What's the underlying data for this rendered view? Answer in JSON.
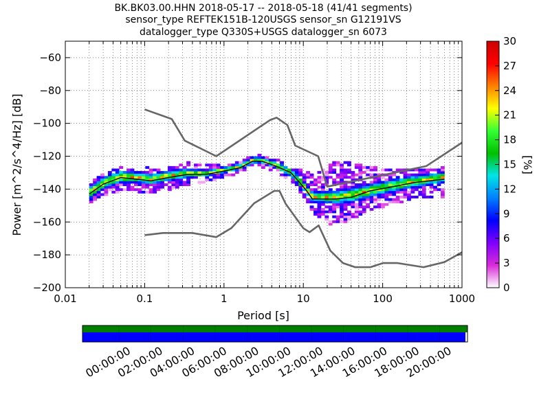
{
  "figure": {
    "title_lines": [
      "BK.BK03.00.HHN   2018-05-17 -- 2018-05-18  (41/41 segments)",
      "sensor_type REFTEK151B-120USGS sensor_sn G12191VS",
      "datalogger_type Q330S+USGS datalogger_sn 6073"
    ]
  },
  "chart_data": {
    "type": "heatmap",
    "title": "BK.BK03.00.HHN   2018-05-17 -- 2018-05-18  (41/41 segments)",
    "xlabel": "Period [s]",
    "ylabel": "Power [m^2/s^4/Hz] [dB]",
    "x_scale": "log",
    "xlim": [
      0.01,
      1000
    ],
    "ylim": [
      -200,
      -50
    ],
    "grid": true,
    "x_ticks": [
      0.01,
      0.1,
      1,
      10,
      100,
      1000
    ],
    "x_tick_labels": [
      "0.01",
      "0.1",
      "1",
      "10",
      "100",
      "1000"
    ],
    "y_ticks": [
      -200,
      -180,
      -160,
      -140,
      -120,
      -100,
      -80,
      -60
    ],
    "y_tick_labels": [
      "−200",
      "−180",
      "−160",
      "−140",
      "−120",
      "−100",
      "−80",
      "−60"
    ],
    "colorbar": {
      "label": "[%]",
      "range": [
        0,
        30
      ],
      "ticks": [
        0,
        3,
        6,
        9,
        12,
        15,
        18,
        21,
        24,
        27,
        30
      ],
      "tick_labels": [
        "0",
        "3",
        "6",
        "9",
        "12",
        "15",
        "18",
        "21",
        "24",
        "27",
        "30"
      ],
      "colors": [
        "#ffffff",
        "#d92bd9",
        "#7f00ff",
        "#0000ff",
        "#0080ff",
        "#00e5e5",
        "#00c000",
        "#33ff33",
        "#ffff00",
        "#ff8000",
        "#ff0000",
        "#cc0000"
      ]
    },
    "noise_models": [
      {
        "name": "NHNM",
        "color": "#666666",
        "x": [
          0.1,
          0.22,
          0.32,
          0.8,
          3.8,
          4.6,
          6.3,
          7.9,
          15.4,
          20,
          354,
          10000
        ],
        "y": [
          -91.5,
          -97.4,
          -110.5,
          -120,
          -98,
          -96.5,
          -101,
          -113.5,
          -120,
          -138.5,
          -126,
          -80
        ]
      },
      {
        "name": "NLNM",
        "color": "#666666",
        "x": [
          0.1,
          0.17,
          0.4,
          0.8,
          1.24,
          2.4,
          4.3,
          5,
          6,
          10,
          12,
          15.6,
          21.9,
          31.6,
          45,
          70,
          101,
          154,
          328,
          600,
          10000
        ],
        "y": [
          -168,
          -166.7,
          -166.7,
          -169.2,
          -163.7,
          -148.6,
          -141.1,
          -141.1,
          -149,
          -163.8,
          -166.2,
          -162.1,
          -177.5,
          -185,
          -187.5,
          -187.5,
          -185,
          -185,
          -187.5,
          -184.4,
          -151.5
        ]
      }
    ],
    "mode_curve": {
      "color": "#000000",
      "x": [
        0.02,
        0.03,
        0.05,
        0.08,
        0.12,
        0.2,
        0.35,
        0.6,
        1,
        1.6,
        2.3,
        3,
        4.5,
        7,
        9,
        11,
        13,
        17,
        25,
        40,
        70,
        120,
        250,
        600
      ],
      "y": [
        -143,
        -137,
        -133,
        -134,
        -135,
        -133,
        -131,
        -131,
        -129,
        -127,
        -123,
        -123,
        -126,
        -130,
        -136,
        -141,
        -146,
        -146,
        -146,
        -145,
        -141,
        -139,
        -136,
        -134
      ]
    },
    "bands": [
      {
        "name": "core",
        "x": [
          0.02,
          0.03,
          0.05,
          0.08,
          0.12,
          0.2,
          0.35,
          0.6,
          1,
          1.6,
          2.3,
          3,
          4.5,
          7,
          9,
          11,
          13,
          17,
          25,
          40,
          70,
          120,
          250,
          600
        ],
        "low": [
          -147,
          -141,
          -137,
          -137,
          -138,
          -136,
          -134,
          -133,
          -131,
          -129,
          -125,
          -125,
          -128,
          -133,
          -139,
          -144,
          -149,
          -149,
          -150,
          -149,
          -146,
          -143,
          -140,
          -137
        ],
        "high": [
          -139,
          -133,
          -129,
          -130,
          -131,
          -129,
          -128,
          -129,
          -127,
          -125,
          -121,
          -121,
          -124,
          -128,
          -133,
          -138,
          -142,
          -142,
          -141,
          -140,
          -137,
          -135,
          -132,
          -130
        ],
        "pct_range": [
          6,
          27
        ]
      },
      {
        "name": "spread",
        "x": [
          0.02,
          0.03,
          0.05,
          0.08,
          0.12,
          0.2,
          0.35,
          0.6,
          1,
          1.6,
          2.3,
          3,
          4.5,
          7,
          9,
          11,
          13,
          17,
          25,
          40,
          70,
          120,
          250,
          600
        ],
        "low": [
          -148,
          -143,
          -141,
          -141,
          -142,
          -140,
          -137,
          -135,
          -132,
          -130,
          -126,
          -126,
          -129,
          -135,
          -141,
          -147,
          -153,
          -158,
          -162,
          -158,
          -152,
          -149,
          -145,
          -144
        ],
        "high": [
          -137,
          -131,
          -127,
          -126,
          -128,
          -127,
          -124,
          -126,
          -126,
          -124,
          -120,
          -120,
          -122,
          -126,
          -128,
          -130,
          -132,
          -128,
          -124,
          -124,
          -127,
          -128,
          -129,
          -127
        ],
        "pct_range": [
          1,
          8
        ]
      }
    ],
    "timeline": {
      "ticks": [
        "00:00:00",
        "02:00:00",
        "04:00:00",
        "06:00:00",
        "08:00:00",
        "10:00:00",
        "12:00:00",
        "14:00:00",
        "16:00:00",
        "18:00:00",
        "20:00:00"
      ],
      "bars": [
        {
          "name": "data-coverage",
          "color": "#007f00",
          "start": 0,
          "end": 24
        },
        {
          "name": "psd-coverage",
          "color": "#0000ff",
          "start": 0,
          "end": 24
        }
      ]
    }
  }
}
